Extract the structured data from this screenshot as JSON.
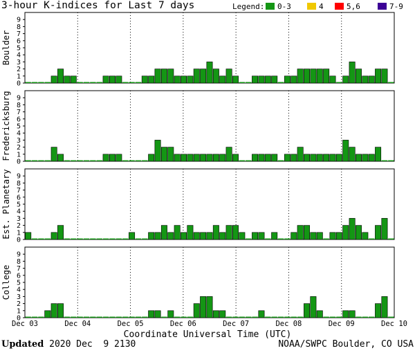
{
  "title": "3-hour K-indices for Last 7 days",
  "legend": {
    "label": "Legend:",
    "items": [
      {
        "label": "0-3",
        "color": "#149614"
      },
      {
        "label": "4",
        "color": "#f0c800"
      },
      {
        "label": "5,6",
        "color": "#ff0000"
      },
      {
        "label": "7-9",
        "color": "#3c0096"
      }
    ]
  },
  "footer": {
    "updated_label": "Updated",
    "updated_value": " 2020 Dec  9 2130",
    "credit": "NOAA/SWPC Boulder, CO USA"
  },
  "chart_data": {
    "type": "bar",
    "xlabel": "Coordinate Universal Time (UTC)",
    "x_ticks": [
      "Dec 03",
      "Dec 04",
      "Dec 05",
      "Dec 06",
      "Dec 07",
      "Dec 08",
      "Dec 09",
      "Dec 10"
    ],
    "ylim": [
      0,
      9
    ],
    "y_ticks": [
      "0",
      "1",
      "2",
      "3",
      "4",
      "5",
      "6",
      "7",
      "8",
      "9"
    ],
    "bar_color": "#149614",
    "grid": "dotted",
    "panels": [
      {
        "name": "Boulder",
        "values": [
          0,
          0,
          0,
          0,
          1,
          2,
          1,
          1,
          0,
          0,
          0,
          0,
          1,
          1,
          1,
          0,
          0,
          0,
          1,
          1,
          2,
          2,
          2,
          1,
          1,
          1,
          2,
          2,
          3,
          2,
          1,
          2,
          1,
          0,
          0,
          1,
          1,
          1,
          1,
          0,
          1,
          1,
          2,
          2,
          2,
          2,
          2,
          1,
          0,
          1,
          3,
          2,
          1,
          1,
          2,
          2,
          0
        ]
      },
      {
        "name": "Fredericksburg",
        "values": [
          0,
          0,
          0,
          0,
          2,
          1,
          0,
          0,
          0,
          0,
          0,
          0,
          1,
          1,
          1,
          0,
          0,
          0,
          0,
          1,
          3,
          2,
          2,
          1,
          1,
          1,
          1,
          1,
          1,
          1,
          1,
          2,
          1,
          0,
          0,
          1,
          1,
          1,
          1,
          0,
          1,
          1,
          2,
          1,
          1,
          1,
          1,
          1,
          1,
          3,
          2,
          1,
          1,
          1,
          2,
          0,
          0
        ]
      },
      {
        "name": "Est. Planetary",
        "values": [
          1,
          0,
          0,
          0,
          1,
          2,
          0,
          0,
          0,
          0,
          0,
          0,
          0,
          0,
          0,
          0,
          1,
          0,
          0,
          1,
          1,
          2,
          1,
          2,
          1,
          2,
          1,
          1,
          1,
          2,
          1,
          2,
          2,
          1,
          0,
          1,
          1,
          0,
          1,
          0,
          0,
          1,
          2,
          2,
          1,
          1,
          0,
          1,
          1,
          2,
          3,
          2,
          1,
          0,
          2,
          3,
          0
        ]
      },
      {
        "name": "College",
        "values": [
          0,
          0,
          0,
          1,
          2,
          2,
          0,
          0,
          0,
          0,
          0,
          0,
          0,
          0,
          0,
          0,
          0,
          0,
          0,
          1,
          1,
          0,
          1,
          0,
          0,
          0,
          2,
          3,
          3,
          1,
          1,
          0,
          0,
          0,
          0,
          0,
          1,
          0,
          0,
          0,
          0,
          0,
          0,
          2,
          3,
          1,
          0,
          0,
          0,
          1,
          1,
          0,
          0,
          0,
          2,
          3,
          0
        ]
      }
    ]
  }
}
